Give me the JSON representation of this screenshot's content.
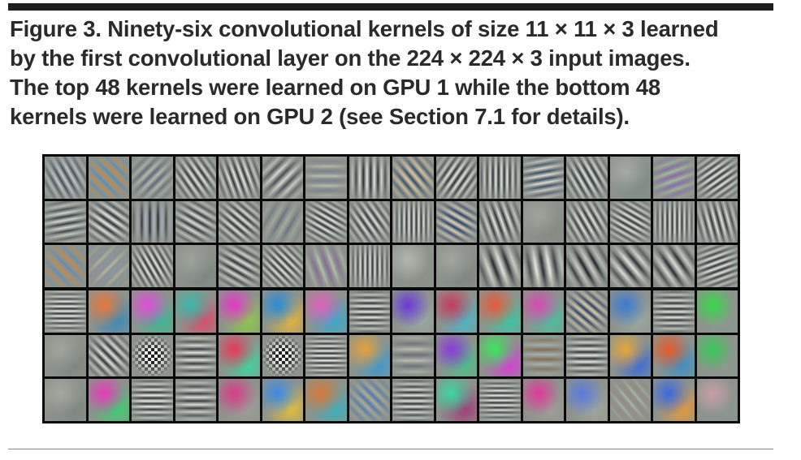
{
  "caption": {
    "lines": [
      "Figure 3. Ninety-six convolutional kernels of size 11 × 11 × 3 learned",
      "by the first convolutional layer on the 224 × 224 × 3 input images.",
      "The top 48 kernels were learned on GPU 1 while the bottom 48",
      "kernels were learned on GPU 2 (see Section 7.1 for details)."
    ]
  },
  "figure": {
    "columns": 16,
    "rows_per_group": 3,
    "colors": {
      "frame": "#0a0a0a",
      "neutral_gray": "#8d938c",
      "light_stripe": "#e4e8e2",
      "dark_stripe": "#30353b"
    },
    "groups": [
      {
        "name": "gpu-1",
        "kernels": [
          {
            "kind": "stripe",
            "angle": -30,
            "period": 9,
            "colors": [
              "#3e4c66",
              "#c6cad0"
            ]
          },
          {
            "kind": "stripe",
            "angle": -45,
            "period": 12,
            "colors": [
              "#c58a48",
              "#5a8ab0"
            ]
          },
          {
            "kind": "stripe",
            "angle": 45,
            "period": 10,
            "colors": [
              "#5a6b80",
              "#b4b8b0"
            ]
          },
          {
            "kind": "stripe",
            "angle": -35,
            "period": 8,
            "colors": [
              "#2e3138",
              "#e4e6e2"
            ]
          },
          {
            "kind": "stripe",
            "angle": -20,
            "period": 8,
            "colors": [
              "#2c3036",
              "#e6e8e4"
            ]
          },
          {
            "kind": "stripe",
            "angle": 45,
            "period": 12,
            "colors": [
              "#4a5058",
              "#d6d8d2"
            ]
          },
          {
            "kind": "stripe",
            "angle": 90,
            "period": 12,
            "colors": [
              "#7a8090",
              "#b8bcb4"
            ]
          },
          {
            "kind": "stripe",
            "angle": 0,
            "period": 9,
            "colors": [
              "#2a2e34",
              "#e2e4e0"
            ]
          },
          {
            "kind": "stripe",
            "angle": -40,
            "period": 10,
            "colors": [
              "#3a4a68",
              "#e0c8a0"
            ]
          },
          {
            "kind": "stripe",
            "angle": 35,
            "period": 8,
            "colors": [
              "#2a2c32",
              "#e6e8e4"
            ]
          },
          {
            "kind": "stripe",
            "angle": 0,
            "period": 7,
            "colors": [
              "#2c3038",
              "#e4e8e4"
            ]
          },
          {
            "kind": "stripe",
            "angle": 80,
            "period": 9,
            "colors": [
              "#3a4e70",
              "#d8dcd8"
            ]
          },
          {
            "kind": "stripe",
            "angle": -30,
            "period": 8,
            "colors": [
              "#2a3038",
              "#e2e6e2"
            ]
          },
          {
            "kind": "blob",
            "colors": [
              "#a6aaa4",
              "#7c8a84"
            ]
          },
          {
            "kind": "stripe",
            "angle": 70,
            "period": 11,
            "colors": [
              "#8a6ab8",
              "#a8b4a8"
            ]
          },
          {
            "kind": "stripe",
            "angle": 55,
            "period": 7,
            "colors": [
              "#2c3036",
              "#e4e8e4"
            ]
          },
          {
            "kind": "stripe",
            "angle": 80,
            "period": 9,
            "colors": [
              "#3a404a",
              "#d2d6d0"
            ]
          },
          {
            "kind": "stripe",
            "angle": -55,
            "period": 9,
            "colors": [
              "#2c3036",
              "#e8eae6"
            ]
          },
          {
            "kind": "stripe",
            "angle": 0,
            "period": 10,
            "colors": [
              "#2c2e36",
              "#a8b0c8"
            ]
          },
          {
            "kind": "stripe",
            "angle": -60,
            "period": 9,
            "colors": [
              "#30363e",
              "#d8dcd6"
            ]
          },
          {
            "kind": "stripe",
            "angle": -50,
            "period": 8,
            "colors": [
              "#2a2e34",
              "#e2e4e0"
            ]
          },
          {
            "kind": "stripe",
            "angle": 30,
            "period": 14,
            "colors": [
              "#6a7480",
              "#a4aaa2"
            ]
          },
          {
            "kind": "stripe",
            "angle": -60,
            "period": 7,
            "colors": [
              "#2a2c32",
              "#e4e6e2"
            ]
          },
          {
            "kind": "stripe",
            "angle": -35,
            "period": 8,
            "colors": [
              "#30343c",
              "#e0e2de"
            ]
          },
          {
            "kind": "stripe",
            "angle": 0,
            "period": 6,
            "colors": [
              "#2e3238",
              "#e8eae6"
            ]
          },
          {
            "kind": "stripe",
            "angle": -60,
            "period": 9,
            "colors": [
              "#283c70",
              "#d8d0c0"
            ]
          },
          {
            "kind": "stripe",
            "angle": -20,
            "period": 9,
            "colors": [
              "#2e3238",
              "#e0e2de"
            ]
          },
          {
            "kind": "blob",
            "colors": [
              "#9ea49c",
              "#828880"
            ]
          },
          {
            "kind": "stripe",
            "angle": -30,
            "period": 8,
            "colors": [
              "#2e3238",
              "#e4e6e2"
            ]
          },
          {
            "kind": "stripe",
            "angle": -60,
            "period": 7,
            "colors": [
              "#2c3036",
              "#e6e8e4"
            ]
          },
          {
            "kind": "stripe",
            "angle": 0,
            "period": 6,
            "colors": [
              "#2e3238",
              "#e6e8e4"
            ]
          },
          {
            "kind": "stripe",
            "angle": -15,
            "period": 8,
            "colors": [
              "#2e3238",
              "#e2e4e0"
            ]
          },
          {
            "kind": "stripe",
            "angle": -45,
            "period": 14,
            "colors": [
              "#c48a50",
              "#6a8aa8"
            ]
          },
          {
            "kind": "stripe",
            "angle": 45,
            "period": 14,
            "colors": [
              "#8a94a8",
              "#b0b2a8"
            ]
          },
          {
            "kind": "stripe",
            "angle": -30,
            "period": 7,
            "colors": [
              "#2a2c32",
              "#e6e8e4"
            ]
          },
          {
            "kind": "blob",
            "colors": [
              "#9ca29a",
              "#7c8680"
            ]
          },
          {
            "kind": "stripe",
            "angle": -60,
            "period": 9,
            "colors": [
              "#2e3238",
              "#dadcd6"
            ]
          },
          {
            "kind": "stripe",
            "angle": -45,
            "period": 7,
            "colors": [
              "#2c3036",
              "#e4e6e2"
            ]
          },
          {
            "kind": "stripe",
            "angle": -20,
            "period": 14,
            "colors": [
              "#8a6a9a",
              "#b8bcb4"
            ]
          },
          {
            "kind": "stripe",
            "angle": 0,
            "period": 6,
            "colors": [
              "#2e3238",
              "#e6e8e4"
            ]
          },
          {
            "kind": "blob",
            "colors": [
              "#b2b6ae",
              "#8a9088"
            ]
          },
          {
            "kind": "blob",
            "colors": [
              "#a0a69e",
              "#7e8680"
            ]
          },
          {
            "kind": "stripe",
            "angle": -20,
            "period": 16,
            "colors": [
              "#2a2e34",
              "#dfe2dc"
            ]
          },
          {
            "kind": "stripe",
            "angle": -10,
            "period": 16,
            "colors": [
              "#2e323a",
              "#e6e8e4"
            ]
          },
          {
            "kind": "stripe",
            "angle": -30,
            "period": 14,
            "colors": [
              "#1e2228",
              "#c8ccc6"
            ]
          },
          {
            "kind": "stripe",
            "angle": -40,
            "period": 14,
            "colors": [
              "#2e3238",
              "#e0e2de"
            ]
          },
          {
            "kind": "stripe",
            "angle": -35,
            "period": 14,
            "colors": [
              "#2a2e34",
              "#dadcd6"
            ]
          },
          {
            "kind": "stripe",
            "angle": 70,
            "period": 7,
            "colors": [
              "#2c3036",
              "#e4e6e2"
            ]
          }
        ]
      },
      {
        "name": "gpu-2",
        "kernels": [
          {
            "kind": "stripe",
            "angle": 90,
            "period": 6,
            "colors": [
              "#2e3238",
              "#f0f2ee"
            ]
          },
          {
            "kind": "blob",
            "colors": [
              "#e8783a",
              "#3a8ab8"
            ]
          },
          {
            "kind": "blob",
            "colors": [
              "#e04cd8",
              "#3ab890"
            ]
          },
          {
            "kind": "blob",
            "colors": [
              "#3ab8a8",
              "#d84a6a"
            ]
          },
          {
            "kind": "blob",
            "colors": [
              "#e038c8",
              "#8acc4a"
            ]
          },
          {
            "kind": "blob",
            "colors": [
              "#2a8ad8",
              "#e8b43a"
            ]
          },
          {
            "kind": "blob",
            "colors": [
              "#e060b8",
              "#38a8d0"
            ]
          },
          {
            "kind": "stripe",
            "angle": 90,
            "period": 7,
            "colors": [
              "#2e3238",
              "#e6e8e4"
            ]
          },
          {
            "kind": "blob",
            "colors": [
              "#6a3ad8",
              "#9aa8a0"
            ]
          },
          {
            "kind": "blob",
            "colors": [
              "#c83a5a",
              "#4ab8c8"
            ]
          },
          {
            "kind": "blob",
            "colors": [
              "#e85a3a",
              "#3ac8a8"
            ]
          },
          {
            "kind": "blob",
            "colors": [
              "#d84ab0",
              "#4ac0a0"
            ]
          },
          {
            "kind": "stripe",
            "angle": -50,
            "period": 9,
            "colors": [
              "#2e3a60",
              "#d8ccb0"
            ]
          },
          {
            "kind": "blob",
            "colors": [
              "#3a7ad0",
              "#9aa8a0"
            ]
          },
          {
            "kind": "stripe",
            "angle": 90,
            "period": 7,
            "colors": [
              "#2e3238",
              "#e2e4e0"
            ]
          },
          {
            "kind": "blob",
            "colors": [
              "#3ad84a",
              "#8a9890"
            ]
          },
          {
            "kind": "blob",
            "colors": [
              "#a0a49c",
              "#7e8680"
            ]
          },
          {
            "kind": "stripe",
            "angle": -45,
            "period": 9,
            "colors": [
              "#2e3238",
              "#e0e2de"
            ]
          },
          {
            "kind": "checker",
            "colors": [
              "#f2f2f2",
              "#1e1e1e"
            ]
          },
          {
            "kind": "stripe",
            "angle": 90,
            "period": 9,
            "colors": [
              "#3a3e44",
              "#dcdeda"
            ]
          },
          {
            "kind": "blob",
            "colors": [
              "#e8385a",
              "#3ad8a0"
            ]
          },
          {
            "kind": "checker",
            "colors": [
              "#f2f2f2",
              "#1e1e1e"
            ]
          },
          {
            "kind": "stripe",
            "angle": 90,
            "period": 6,
            "colors": [
              "#2a2e34",
              "#f0f2ee"
            ]
          },
          {
            "kind": "blob",
            "colors": [
              "#e8a03a",
              "#3a9ad0"
            ]
          },
          {
            "kind": "stripe",
            "angle": 90,
            "period": 14,
            "colors": [
              "#6a7078",
              "#b8bcb4"
            ]
          },
          {
            "kind": "blob",
            "colors": [
              "#8a3ad8",
              "#48c088"
            ]
          },
          {
            "kind": "blob",
            "colors": [
              "#3ae858",
              "#d83ad8"
            ]
          },
          {
            "kind": "stripe",
            "angle": 90,
            "period": 12,
            "colors": [
              "#8a6a4a",
              "#aab0aa"
            ]
          },
          {
            "kind": "stripe",
            "angle": 90,
            "period": 8,
            "colors": [
              "#2e3238",
              "#e4e6e2"
            ]
          },
          {
            "kind": "blob",
            "colors": [
              "#e8a83a",
              "#3a6ad8"
            ]
          },
          {
            "kind": "blob",
            "colors": [
              "#e85a28",
              "#3a90c8"
            ]
          },
          {
            "kind": "blob",
            "colors": [
              "#3ac858",
              "#8a9890"
            ]
          },
          {
            "kind": "blob",
            "colors": [
              "#a4a8a0",
              "#7e8680"
            ]
          },
          {
            "kind": "blob",
            "colors": [
              "#e83ab8",
              "#3ad070"
            ]
          },
          {
            "kind": "stripe",
            "angle": 90,
            "period": 7,
            "colors": [
              "#2e3238",
              "#eeeeea"
            ]
          },
          {
            "kind": "stripe",
            "angle": 90,
            "period": 9,
            "colors": [
              "#3a3e44",
              "#d8dad6"
            ]
          },
          {
            "kind": "blob",
            "colors": [
              "#d83a88",
              "#9aa098"
            ]
          },
          {
            "kind": "blob",
            "colors": [
              "#3a8ae8",
              "#e8c03a"
            ]
          },
          {
            "kind": "blob",
            "colors": [
              "#d87838",
              "#3ab0c0"
            ]
          },
          {
            "kind": "stripe",
            "angle": -45,
            "period": 10,
            "colors": [
              "#4a7ac0",
              "#a0b0a4"
            ]
          },
          {
            "kind": "stripe",
            "angle": 90,
            "period": 7,
            "colors": [
              "#2e3238",
              "#e2e4e0"
            ]
          },
          {
            "kind": "blob",
            "colors": [
              "#38d8a0",
              "#a03a78"
            ]
          },
          {
            "kind": "stripe",
            "angle": 90,
            "period": 6,
            "colors": [
              "#2e3238",
              "#e6e8e4"
            ]
          },
          {
            "kind": "blob",
            "colors": [
              "#e0389a",
              "#9aa098"
            ]
          },
          {
            "kind": "blob",
            "colors": [
              "#5a7ae0",
              "#a0a69e"
            ]
          },
          {
            "kind": "stripe",
            "angle": -40,
            "period": 11,
            "colors": [
              "#9a8a7a",
              "#aab2aa"
            ]
          },
          {
            "kind": "blob",
            "colors": [
              "#3a6ae0",
              "#e89a38"
            ]
          },
          {
            "kind": "blob",
            "colors": [
              "#c8a0a8",
              "#8a9690"
            ]
          }
        ]
      }
    ]
  }
}
